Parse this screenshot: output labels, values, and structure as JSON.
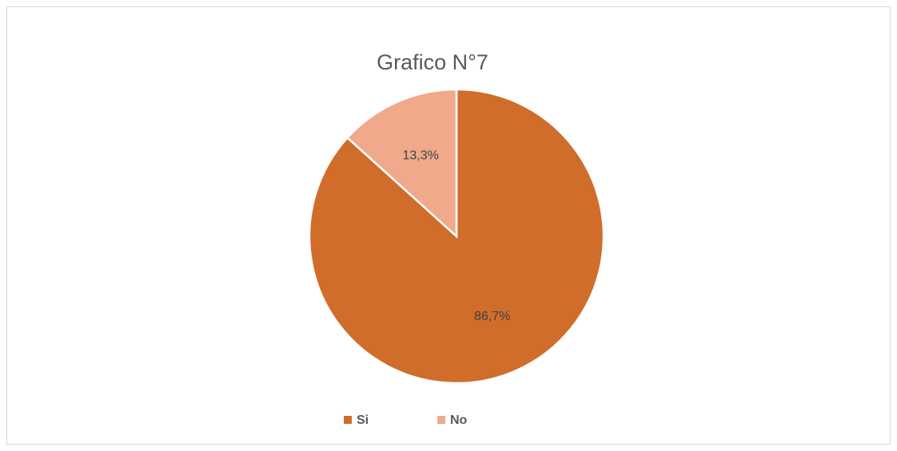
{
  "chart_data": {
    "type": "pie",
    "title": "Grafico N°7",
    "categories": [
      "Si",
      "No"
    ],
    "values": [
      86.7,
      13.3
    ],
    "value_labels": [
      "86,7%",
      "13,3%"
    ],
    "colors": [
      "#d06d2a",
      "#f0a98a"
    ],
    "legend": "bottom"
  }
}
